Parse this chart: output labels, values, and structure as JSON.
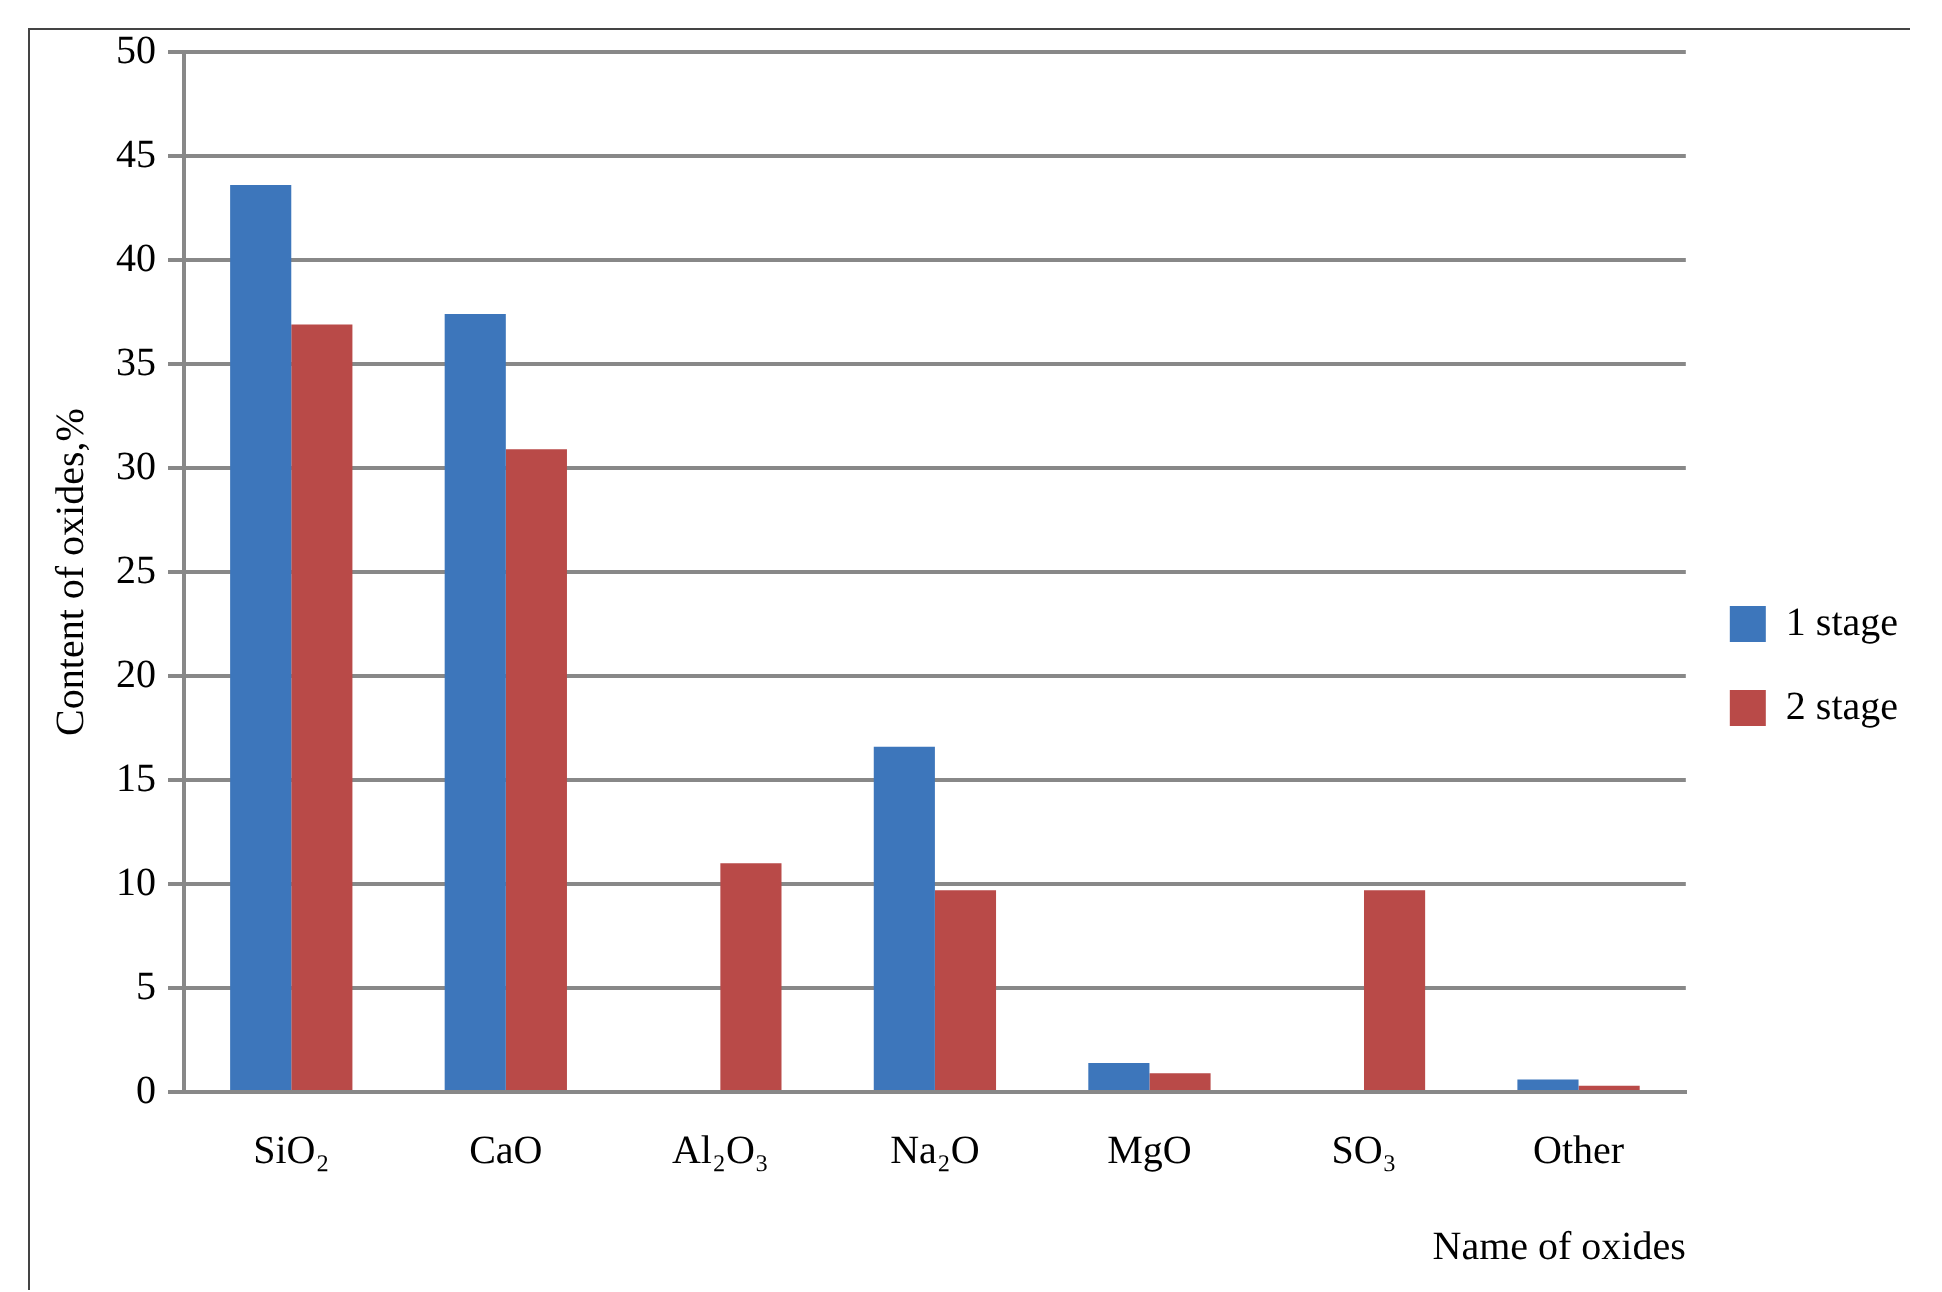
{
  "chart_data": {
    "type": "bar",
    "xlabel": "Name of oxides",
    "ylabel": "Content of oxides,%",
    "categories": [
      "SiO₂",
      "CaO",
      "Al₂O₃",
      "Na₂O",
      "MgO",
      "SO₃",
      "Other"
    ],
    "series": [
      {
        "name": "1 stage",
        "color": "#3d76bb",
        "values": [
          43.6,
          37.4,
          0,
          16.6,
          1.4,
          0,
          0.6
        ]
      },
      {
        "name": "2 stage",
        "color": "#b94a48",
        "values": [
          36.9,
          30.9,
          11.0,
          9.7,
          0.9,
          9.7,
          0.3
        ]
      }
    ],
    "ylim": [
      0,
      50
    ],
    "yticks": [
      0,
      5,
      10,
      15,
      20,
      25,
      30,
      35,
      40,
      45,
      50
    ],
    "grid": "y",
    "legend": "right"
  }
}
